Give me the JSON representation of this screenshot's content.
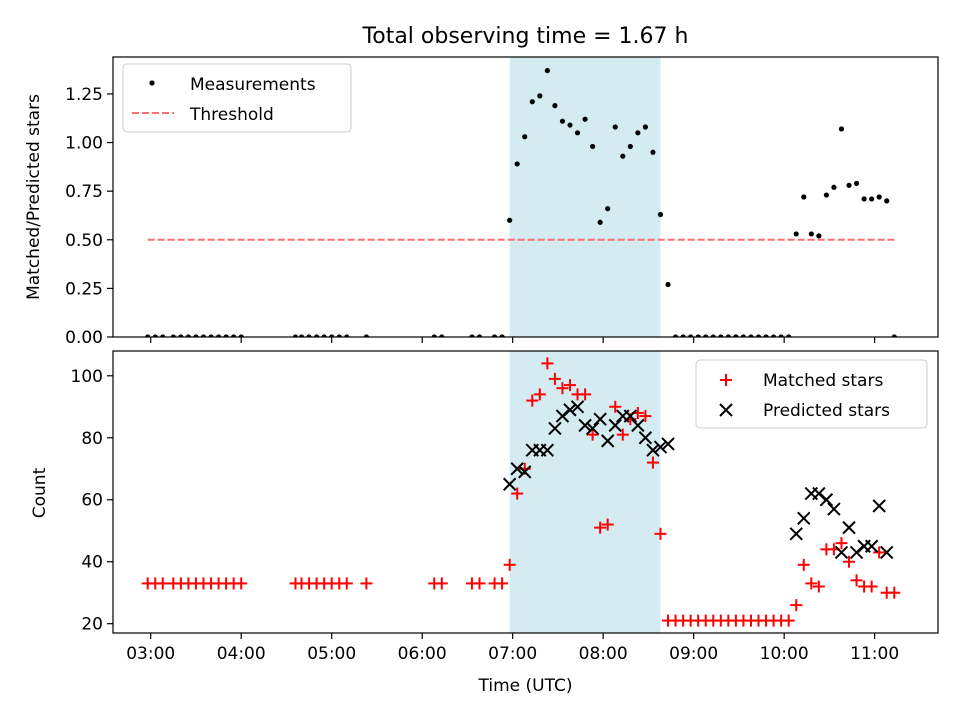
{
  "chart_data": [
    {
      "type": "scatter",
      "title": "Total observing time = 1.67 h",
      "xlabel": "",
      "ylabel": "Matched/Predicted stars",
      "x_unit": "hours UTC",
      "xlim": [
        "02:35",
        "11:42"
      ],
      "ylim": [
        0,
        1.44
      ],
      "yticks": [
        "0.00",
        "0.25",
        "0.50",
        "0.75",
        "1.00",
        "1.25"
      ],
      "grid": false,
      "legend_position": "upper left",
      "shaded_region": {
        "x": [
          "06:58",
          "08:38"
        ],
        "color": "#add8e6"
      },
      "series": [
        {
          "name": "Measurements",
          "marker": "dot",
          "color": "#000000",
          "x": [
            "02:58",
            "03:03",
            "03:08",
            "03:15",
            "03:20",
            "03:25",
            "03:30",
            "03:35",
            "03:40",
            "03:45",
            "03:50",
            "03:55",
            "04:00",
            "04:36",
            "04:40",
            "04:45",
            "04:50",
            "04:55",
            "05:00",
            "05:05",
            "05:10",
            "05:23",
            "06:08",
            "06:13",
            "06:33",
            "06:38",
            "06:48",
            "06:53",
            "06:58",
            "07:03",
            "07:08",
            "07:13",
            "07:18",
            "07:23",
            "07:28",
            "07:33",
            "07:38",
            "07:43",
            "07:48",
            "07:53",
            "07:58",
            "08:03",
            "08:08",
            "08:13",
            "08:18",
            "08:23",
            "08:28",
            "08:33",
            "08:38",
            "08:43",
            "08:48",
            "08:53",
            "08:58",
            "09:03",
            "09:08",
            "09:13",
            "09:18",
            "09:23",
            "09:28",
            "09:33",
            "09:38",
            "09:43",
            "09:48",
            "09:53",
            "09:58",
            "10:03",
            "10:08",
            "10:13",
            "10:18",
            "10:23",
            "10:28",
            "10:33",
            "10:38",
            "10:43",
            "10:48",
            "10:53",
            "10:58",
            "11:03",
            "11:08",
            "11:13"
          ],
          "y": [
            0,
            0,
            0,
            0,
            0,
            0,
            0,
            0,
            0,
            0,
            0,
            0,
            0,
            0,
            0,
            0,
            0,
            0,
            0,
            0,
            0,
            0,
            0,
            0,
            0,
            0,
            0,
            0,
            0.6,
            0.89,
            1.03,
            1.21,
            1.24,
            1.37,
            1.19,
            1.11,
            1.09,
            1.05,
            1.12,
            0.98,
            0.59,
            0.66,
            1.08,
            0.93,
            0.98,
            1.05,
            1.08,
            0.95,
            0.63,
            0.27,
            0,
            0,
            0,
            0,
            0,
            0,
            0,
            0,
            0,
            0,
            0,
            0,
            0,
            0,
            0,
            0,
            0.53,
            0.72,
            0.53,
            0.52,
            0.73,
            0.77,
            1.07,
            0.78,
            0.79,
            0.71,
            0.71,
            0.72,
            0.7,
            0
          ]
        },
        {
          "name": "Threshold",
          "style": "dashed",
          "color": "#ff7070",
          "x": [
            "02:58",
            "11:13"
          ],
          "y": [
            0.5,
            0.5
          ]
        }
      ]
    },
    {
      "type": "scatter",
      "title": "",
      "xlabel": "Time (UTC)",
      "ylabel": "Count",
      "x_unit": "hours UTC",
      "xlim": [
        "02:35",
        "11:42"
      ],
      "ylim": [
        17,
        108
      ],
      "xticks": [
        "03:00",
        "04:00",
        "05:00",
        "06:00",
        "07:00",
        "08:00",
        "09:00",
        "10:00",
        "11:00"
      ],
      "yticks": [
        "20",
        "40",
        "60",
        "80",
        "100"
      ],
      "grid": false,
      "legend_position": "upper right",
      "shaded_region": {
        "x": [
          "06:58",
          "08:38"
        ],
        "color": "#add8e6"
      },
      "series": [
        {
          "name": "Matched stars",
          "marker": "plus",
          "color": "#ff0000",
          "x": [
            "02:58",
            "03:03",
            "03:08",
            "03:15",
            "03:20",
            "03:25",
            "03:30",
            "03:35",
            "03:40",
            "03:45",
            "03:50",
            "03:55",
            "04:00",
            "04:36",
            "04:40",
            "04:45",
            "04:50",
            "04:55",
            "05:00",
            "05:05",
            "05:10",
            "05:23",
            "06:08",
            "06:13",
            "06:33",
            "06:38",
            "06:48",
            "06:53",
            "06:58",
            "07:03",
            "07:08",
            "07:13",
            "07:18",
            "07:23",
            "07:28",
            "07:33",
            "07:38",
            "07:43",
            "07:48",
            "07:53",
            "07:58",
            "08:03",
            "08:08",
            "08:13",
            "08:18",
            "08:23",
            "08:28",
            "08:33",
            "08:38",
            "08:43",
            "08:48",
            "08:53",
            "08:58",
            "09:03",
            "09:08",
            "09:13",
            "09:18",
            "09:23",
            "09:28",
            "09:33",
            "09:38",
            "09:43",
            "09:48",
            "09:53",
            "09:58",
            "10:03",
            "10:08",
            "10:13",
            "10:18",
            "10:23",
            "10:28",
            "10:33",
            "10:38",
            "10:43",
            "10:48",
            "10:53",
            "10:58",
            "11:03",
            "11:08",
            "11:13"
          ],
          "y": [
            33,
            33,
            33,
            33,
            33,
            33,
            33,
            33,
            33,
            33,
            33,
            33,
            33,
            33,
            33,
            33,
            33,
            33,
            33,
            33,
            33,
            33,
            33,
            33,
            33,
            33,
            33,
            33,
            39,
            62,
            70,
            92,
            94,
            104,
            99,
            96,
            97,
            94,
            94,
            81,
            51,
            52,
            90,
            81,
            86,
            88,
            87,
            72,
            49,
            21,
            21,
            21,
            21,
            21,
            21,
            21,
            21,
            21,
            21,
            21,
            21,
            21,
            21,
            21,
            21,
            21,
            26,
            39,
            33,
            32,
            44,
            44,
            46,
            40,
            34,
            32,
            32,
            43,
            30,
            30
          ]
        },
        {
          "name": "Predicted stars",
          "marker": "x",
          "color": "#000000",
          "x": [
            "06:58",
            "07:03",
            "07:08",
            "07:13",
            "07:18",
            "07:23",
            "07:28",
            "07:33",
            "07:38",
            "07:43",
            "07:48",
            "07:53",
            "07:58",
            "08:03",
            "08:08",
            "08:13",
            "08:18",
            "08:23",
            "08:28",
            "08:33",
            "08:38",
            "08:43",
            "10:08",
            "10:13",
            "10:18",
            "10:23",
            "10:28",
            "10:33",
            "10:38",
            "10:43",
            "10:48",
            "10:53",
            "10:58",
            "11:03",
            "11:08"
          ],
          "y": [
            65,
            70,
            69,
            76,
            76,
            76,
            83,
            87,
            89,
            90,
            84,
            83,
            86,
            79,
            84,
            87,
            87,
            84,
            80,
            76,
            77,
            78,
            49,
            54,
            62,
            62,
            60,
            57,
            43,
            51,
            43,
            45,
            45,
            58,
            43
          ]
        }
      ]
    }
  ]
}
